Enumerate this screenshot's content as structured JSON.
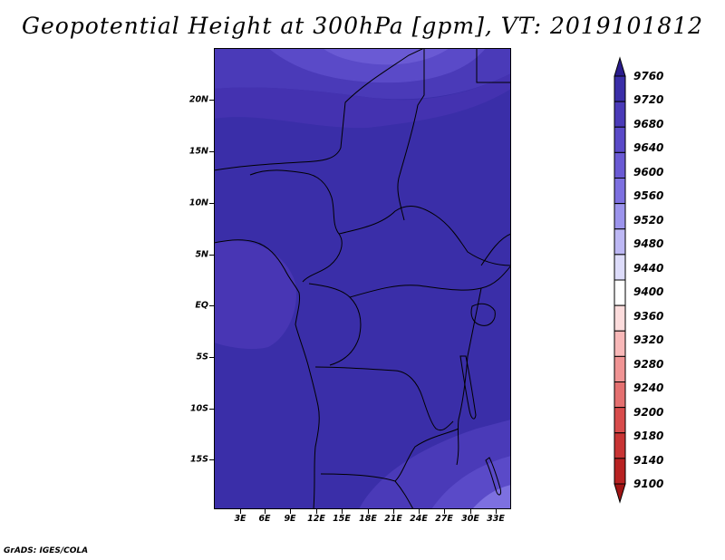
{
  "title": "Geopotential Height at 300hPa [gpm], VT: 2019101812",
  "credit": "GrADS: IGES/COLA",
  "map": {
    "lat_range": [
      -19,
      25
    ],
    "lon_range": [
      0,
      34
    ],
    "y_ticks": [
      "20N",
      "15N",
      "10N",
      "5N",
      "EQ",
      "5S",
      "10S",
      "15S"
    ],
    "x_ticks": [
      "3E",
      "6E",
      "9E",
      "12E",
      "15E",
      "18E",
      "21E",
      "24E",
      "27E",
      "30E",
      "33E"
    ]
  },
  "colorbar": {
    "labels": [
      "9760",
      "9720",
      "9680",
      "9640",
      "9600",
      "9560",
      "9520",
      "9480",
      "9440",
      "9400",
      "9360",
      "9320",
      "9280",
      "9240",
      "9200",
      "9180",
      "9140",
      "9100"
    ],
    "colors": [
      "#2a1c8c",
      "#3a2ea8",
      "#4a3ab8",
      "#5a4ac8",
      "#6a5ad4",
      "#7d70e0",
      "#9c94ec",
      "#bdb8f4",
      "#dddcfa",
      "#ffffff",
      "#fcdcdc",
      "#f8b8b8",
      "#f09494",
      "#e47070",
      "#d84c4c",
      "#c83434",
      "#b82222",
      "#a01414"
    ]
  }
}
